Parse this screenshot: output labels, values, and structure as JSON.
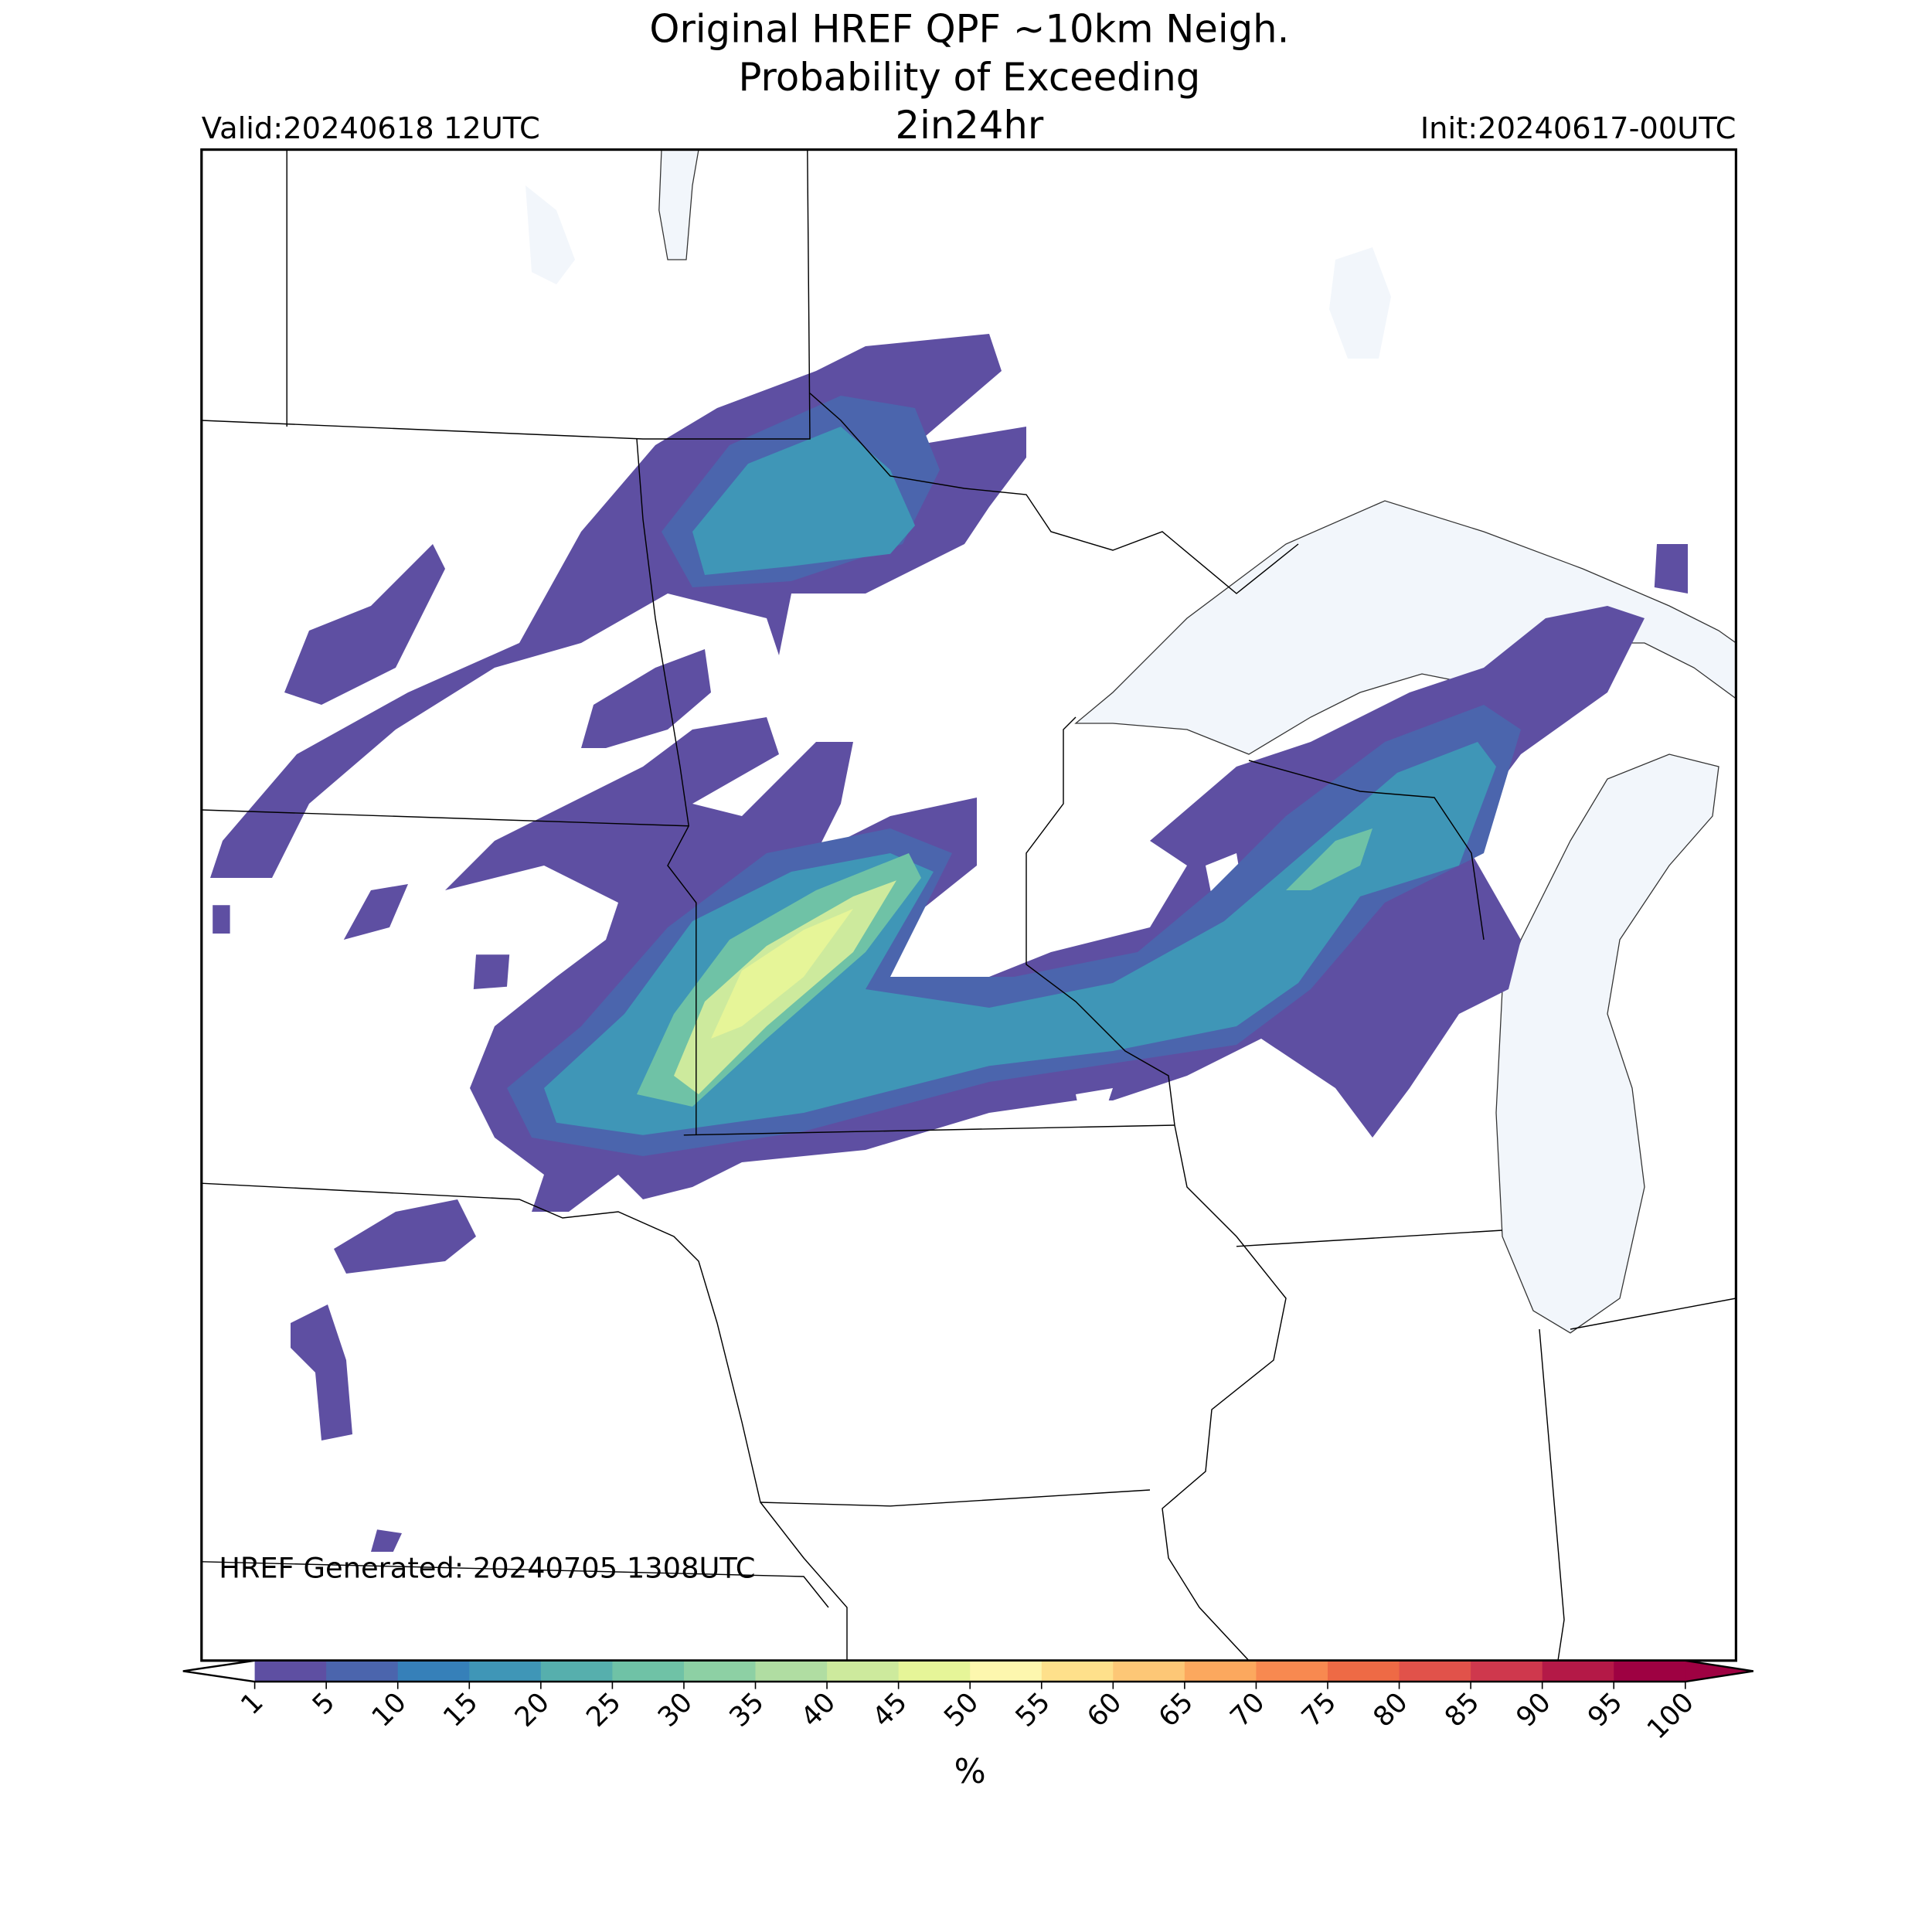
{
  "header": {
    "title_lines": [
      "Original HREF QPF ~10km Neigh.",
      "Probability of Exceeding",
      "2in24hr"
    ],
    "valid": "Valid:20240618 12UTC",
    "init": "Init:20240617-00UTC"
  },
  "footer": "HREF Generated: 20240705 1308UTC",
  "colorbar": {
    "label": "%",
    "ticks": [
      1,
      5,
      10,
      15,
      20,
      25,
      30,
      35,
      40,
      45,
      50,
      55,
      60,
      65,
      70,
      75,
      80,
      85,
      90,
      95,
      100
    ],
    "colors": [
      "#5e4fa2",
      "#4b65ad",
      "#3680b9",
      "#3f96b7",
      "#56afad",
      "#6fc2a6",
      "#8dd0a4",
      "#b0dda2",
      "#cdea9d",
      "#e6f598",
      "#fdf7ae",
      "#fee08b",
      "#fdc776",
      "#fca85e",
      "#f88950",
      "#ee6a45",
      "#e1524a",
      "#cf384d",
      "#b41947",
      "#9e0142"
    ],
    "under_color": "#ffffff",
    "over_color": "#9e0142"
  }
}
